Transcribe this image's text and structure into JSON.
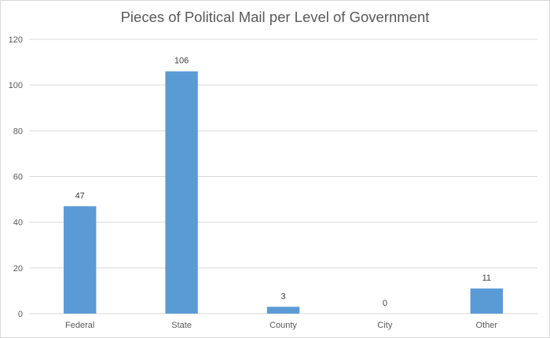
{
  "chart_data": {
    "type": "bar",
    "title": "Pieces of Political Mail per Level of Government",
    "categories": [
      "Federal",
      "State",
      "County",
      "City",
      "Other"
    ],
    "values": [
      47,
      106,
      3,
      0,
      11
    ],
    "data_labels": [
      "47",
      "106",
      "3",
      "0",
      "11"
    ],
    "xlabel": "",
    "ylabel": "",
    "ylim": [
      0,
      120
    ],
    "yticks": [
      0,
      20,
      40,
      60,
      80,
      100,
      120
    ],
    "grid": true,
    "legend": "none",
    "colors": {
      "bar": "#5b9bd5",
      "grid": "#d9d9d9",
      "axis": "#d9d9d9"
    }
  }
}
